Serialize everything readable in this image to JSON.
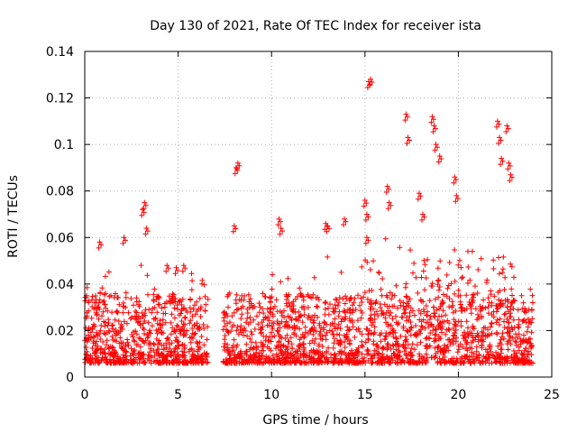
{
  "chart_data": {
    "type": "scatter",
    "title": "Day 130 of 2021, Rate Of TEC Index for receiver ista",
    "xlabel": "GPS time / hours",
    "ylabel": "ROTI / TECUs",
    "xlim": [
      0,
      25
    ],
    "ylim": [
      0,
      0.14
    ],
    "xticks": [
      0,
      5,
      10,
      15,
      20,
      25
    ],
    "xtick_labels": [
      "0",
      "5",
      "10",
      "15",
      "20",
      "25"
    ],
    "yticks": [
      0,
      0.02,
      0.04,
      0.06,
      0.08,
      0.1,
      0.12,
      0.14
    ],
    "ytick_labels": [
      "0",
      "0.02",
      "0.04",
      "0.06",
      "0.08",
      "0.1",
      "0.12",
      "0.14"
    ],
    "grid": true,
    "marker": "+",
    "color": "#ff0000",
    "data_gap_hours": [
      6.6,
      7.4
    ],
    "series": [
      {
        "name": "ROTI",
        "description_note": "dense band of points between ~0.005 and ~0.03 TECU across 0-6.6 h and 7.4-24 h",
        "x": [
          0.8,
          2.1,
          3.1,
          3.2,
          3.3,
          4.4,
          4.9,
          5.3,
          8.1,
          8.2,
          8.0,
          10.4,
          10.5,
          12.9,
          13.0,
          13.9,
          15.0,
          15.1,
          15.2,
          15.3,
          15.1,
          16.2,
          16.3,
          17.2,
          17.3,
          17.9,
          18.1,
          18.6,
          18.7,
          18.8,
          19.0,
          19.8,
          19.9,
          22.1,
          22.2,
          22.3,
          22.6,
          22.7,
          22.8
        ],
        "y": [
          0.058,
          0.06,
          0.072,
          0.075,
          0.064,
          0.048,
          0.047,
          0.048,
          0.09,
          0.092,
          0.065,
          0.068,
          0.064,
          0.066,
          0.065,
          0.068,
          0.076,
          0.06,
          0.127,
          0.128,
          0.07,
          0.082,
          0.075,
          0.113,
          0.103,
          0.079,
          0.07,
          0.112,
          0.108,
          0.1,
          0.095,
          0.086,
          0.078,
          0.11,
          0.103,
          0.094,
          0.108,
          0.092,
          0.087
        ]
      }
    ]
  }
}
